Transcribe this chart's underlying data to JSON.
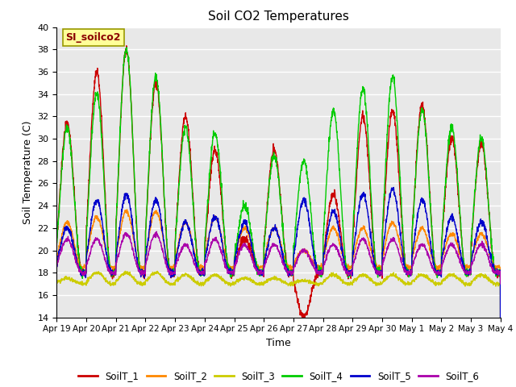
{
  "title": "Soil CO2 Temperatures",
  "xlabel": "Time",
  "ylabel": "Soil Temperature (C)",
  "ylim": [
    14,
    40
  ],
  "yticks": [
    14,
    16,
    18,
    20,
    22,
    24,
    26,
    28,
    30,
    32,
    34,
    36,
    38,
    40
  ],
  "annotation_text": "SI_soilco2",
  "annotation_bg": "#FFFF99",
  "annotation_fg": "#8B0000",
  "annotation_border": "#999900",
  "bg_color": "#E8E8E8",
  "plot_bg": "#DCDCDC",
  "legend_labels": [
    "SoilT_1",
    "SoilT_2",
    "SoilT_3",
    "SoilT_4",
    "SoilT_5",
    "SoilT_6"
  ],
  "line_colors": [
    "#CC0000",
    "#FF8800",
    "#CCCC00",
    "#00CC00",
    "#0000CC",
    "#AA00AA"
  ],
  "x_tick_labels": [
    "Apr 19",
    "Apr 20",
    "Apr 21",
    "Apr 22",
    "Apr 23",
    "Apr 24",
    "Apr 25",
    "Apr 26",
    "Apr 27",
    "Apr 28",
    "Apr 29",
    "Apr 30",
    "May 1",
    "May 2",
    "May 3",
    "May 4"
  ],
  "num_days": 15,
  "points_per_day": 144
}
